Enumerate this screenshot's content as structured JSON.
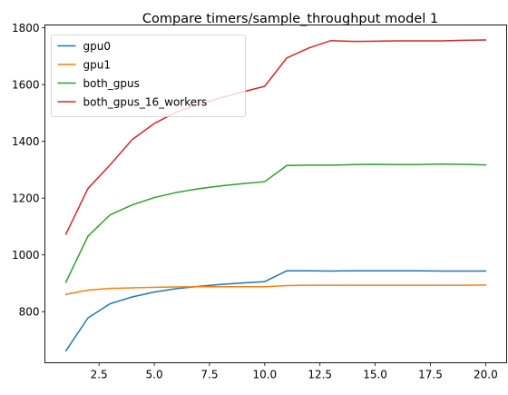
{
  "chart_data": {
    "type": "line",
    "title": "Compare timers/sample_throughput model 1",
    "xlabel": "",
    "ylabel": "",
    "xlim": [
      0.05,
      20.95
    ],
    "ylim": [
      620,
      1810
    ],
    "xticks": [
      2.5,
      5.0,
      7.5,
      10.0,
      12.5,
      15.0,
      17.5,
      20.0
    ],
    "xtick_labels": [
      "2.5",
      "5.0",
      "7.5",
      "10.0",
      "12.5",
      "15.0",
      "17.5",
      "20.0"
    ],
    "yticks": [
      800,
      1000,
      1200,
      1400,
      1600,
      1800
    ],
    "ytick_labels": [
      "800",
      "1000",
      "1200",
      "1400",
      "1600",
      "1800"
    ],
    "grid": false,
    "legend_position": "upper-left",
    "x": [
      1,
      2,
      3,
      4,
      5,
      6,
      7,
      8,
      9,
      10,
      11,
      12,
      13,
      14,
      15,
      16,
      17,
      18,
      19,
      20
    ],
    "series": [
      {
        "name": "gpu0",
        "color": "#1f77b4",
        "values": [
          662,
          778,
          828,
          852,
          869,
          881,
          889,
          896,
          901,
          906,
          944,
          944,
          943,
          944,
          944,
          944,
          944,
          943,
          943,
          943
        ]
      },
      {
        "name": "gpu1",
        "color": "#ff7f0e",
        "values": [
          861,
          876,
          882,
          884,
          886,
          887,
          888,
          888,
          888,
          888,
          892,
          893,
          893,
          893,
          893,
          893,
          893,
          893,
          893,
          894
        ]
      },
      {
        "name": "both_gpus",
        "color": "#2ca02c",
        "values": [
          904,
          1066,
          1141,
          1176,
          1202,
          1220,
          1233,
          1243,
          1251,
          1258,
          1315,
          1316,
          1316,
          1318,
          1319,
          1318,
          1318,
          1320,
          1319,
          1317
        ]
      },
      {
        "name": "both_gpus_16_workers",
        "color": "#d62728",
        "values": [
          1073,
          1234,
          1317,
          1406,
          1463,
          1503,
          1530,
          1553,
          1574,
          1594,
          1694,
          1729,
          1755,
          1752,
          1753,
          1754,
          1754,
          1754,
          1756,
          1757
        ]
      }
    ]
  }
}
